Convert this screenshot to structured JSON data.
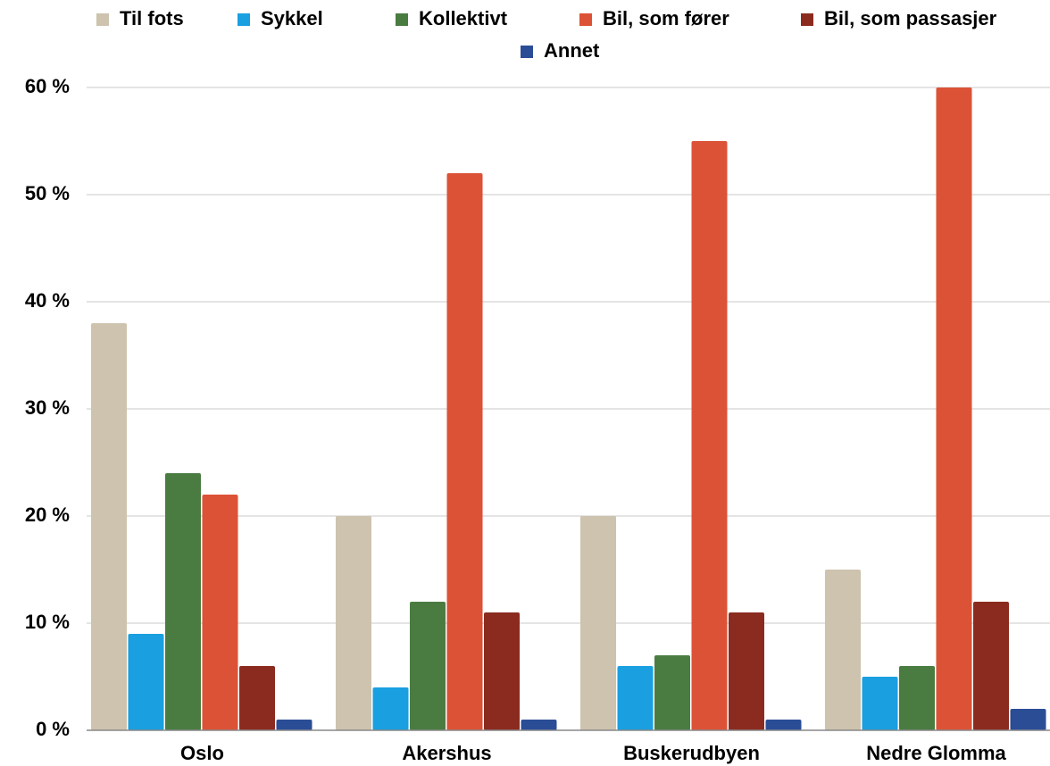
{
  "chart_data": {
    "type": "bar",
    "categories": [
      "Oslo",
      "Akershus",
      "Buskerudbyen",
      "Nedre Glomma"
    ],
    "series": [
      {
        "name": "Til fots",
        "color": "#cdc3ae",
        "values": [
          38,
          20,
          20,
          15
        ]
      },
      {
        "name": "Sykkel",
        "color": "#1a9fe0",
        "values": [
          9,
          4,
          6,
          5
        ]
      },
      {
        "name": "Kollektivt",
        "color": "#4a7c42",
        "values": [
          24,
          12,
          7,
          6
        ]
      },
      {
        "name": "Bil, som fører",
        "color": "#dc5236",
        "values": [
          22,
          52,
          55,
          60
        ]
      },
      {
        "name": "Bil, som passasjer",
        "color": "#8b2b20",
        "values": [
          6,
          11,
          11,
          12
        ]
      },
      {
        "name": "Annet",
        "color": "#2a4d96",
        "values": [
          1,
          1,
          1,
          2
        ]
      }
    ],
    "ylim": [
      0,
      60
    ],
    "yticks": [
      {
        "value": 0,
        "label": "0 %"
      },
      {
        "value": 10,
        "label": "10 %"
      },
      {
        "value": 20,
        "label": "20 %"
      },
      {
        "value": 30,
        "label": "30 %"
      },
      {
        "value": 40,
        "label": "40 %"
      },
      {
        "value": 50,
        "label": "50 %"
      },
      {
        "value": 60,
        "label": "60 %"
      }
    ],
    "grid": true,
    "legend": "top"
  }
}
